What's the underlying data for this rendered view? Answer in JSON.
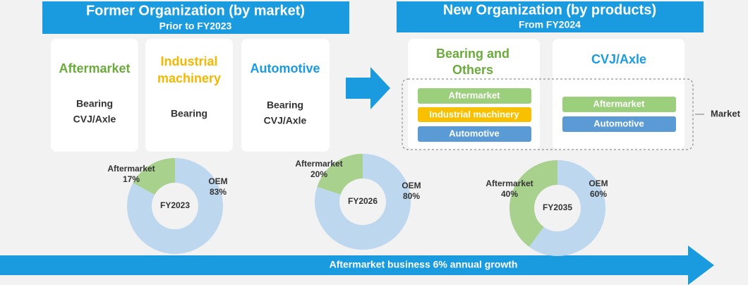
{
  "former": {
    "title": "Former Organization (by market)",
    "subtitle": "Prior to FY2023",
    "cards": [
      {
        "title": [
          "Aftermarket"
        ],
        "lines": [
          "Bearing",
          "CVJ/Axle"
        ]
      },
      {
        "title": [
          "Industrial",
          "machinery"
        ],
        "lines": [
          "Bearing"
        ]
      },
      {
        "title": [
          "Automotive"
        ],
        "lines": [
          "Bearing",
          "CVJ/Axle"
        ]
      }
    ]
  },
  "new": {
    "title": "New Organization (by products)",
    "subtitle": "From FY2024",
    "cards": [
      {
        "title": [
          "Bearing and",
          "Others"
        ],
        "pills": [
          "Aftermarket",
          "Industrial machinery",
          "Automotive"
        ]
      },
      {
        "title": [
          "CVJ/Axle"
        ],
        "pills": [
          "Aftermarket",
          "Automotive"
        ]
      }
    ],
    "market_label": "Market"
  },
  "growth_arrow": "Aftermarket business 6% annual growth",
  "chart_data": [
    {
      "type": "pie",
      "title": "FY2023",
      "categories": [
        "Aftermarket",
        "OEM"
      ],
      "values": [
        17,
        83
      ],
      "value_labels": [
        "17%",
        "83%"
      ],
      "colors": [
        "#a9d18e",
        "#bdd7ee"
      ]
    },
    {
      "type": "pie",
      "title": "FY2026",
      "categories": [
        "Aftermarket",
        "OEM"
      ],
      "values": [
        20,
        80
      ],
      "value_labels": [
        "20%",
        "80%"
      ],
      "colors": [
        "#a9d18e",
        "#bdd7ee"
      ]
    },
    {
      "type": "pie",
      "title": "FY2035",
      "categories": [
        "Aftermarket",
        "OEM"
      ],
      "values": [
        40,
        60
      ],
      "value_labels": [
        "40%",
        "60%"
      ],
      "colors": [
        "#a9d18e",
        "#bdd7ee"
      ]
    }
  ]
}
